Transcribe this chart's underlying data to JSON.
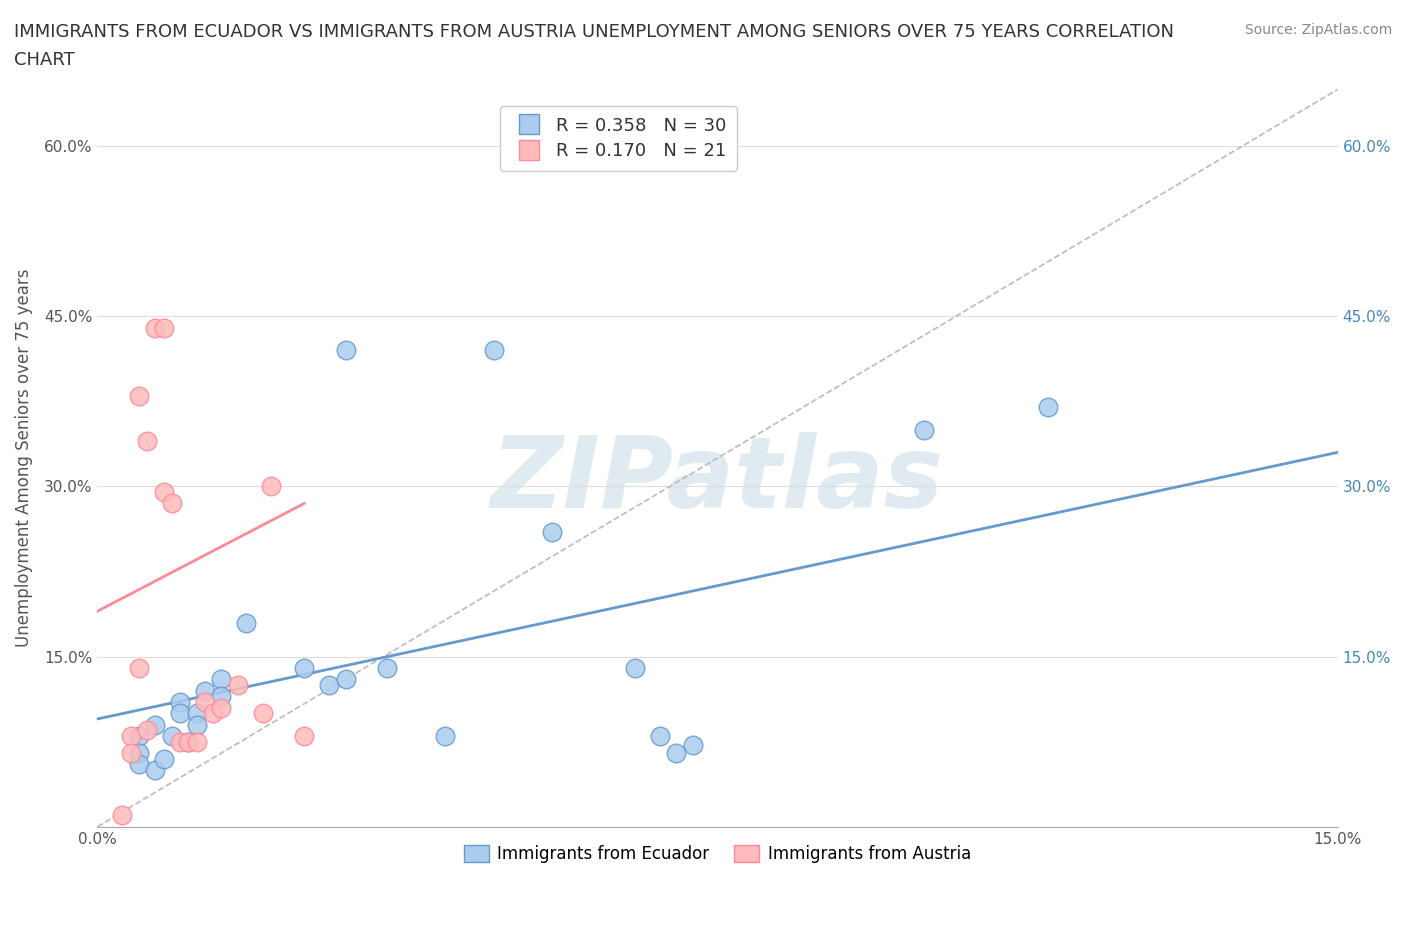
{
  "title_line1": "IMMIGRANTS FROM ECUADOR VS IMMIGRANTS FROM AUSTRIA UNEMPLOYMENT AMONG SENIORS OVER 75 YEARS CORRELATION",
  "title_line2": "CHART",
  "source": "Source: ZipAtlas.com",
  "xlabel": "",
  "ylabel": "Unemployment Among Seniors over 75 years",
  "xlim": [
    0.0,
    0.15
  ],
  "ylim": [
    0.0,
    0.65
  ],
  "xticks": [
    0.0,
    0.025,
    0.05,
    0.075,
    0.1,
    0.125,
    0.15
  ],
  "ytick_positions": [
    0.0,
    0.15,
    0.3,
    0.45,
    0.6
  ],
  "ytick_labels": [
    "",
    "15.0%",
    "30.0%",
    "45.0%",
    "60.0%"
  ],
  "right_ytick_positions": [
    0.15,
    0.3,
    0.45,
    0.6
  ],
  "right_ytick_labels": [
    "15.0%",
    "30.0%",
    "45.0%",
    "60.0%"
  ],
  "ecuador_color": "#AACCEE",
  "austria_color": "#FFBBBB",
  "ecuador_edge": "#6699CC",
  "austria_edge": "#FF8899",
  "ecuador_R": 0.358,
  "ecuador_N": 30,
  "austria_R": 0.17,
  "austria_N": 21,
  "ecuador_points": [
    [
      0.005,
      0.08
    ],
    [
      0.005,
      0.065
    ],
    [
      0.005,
      0.055
    ],
    [
      0.007,
      0.05
    ],
    [
      0.007,
      0.09
    ],
    [
      0.008,
      0.06
    ],
    [
      0.009,
      0.08
    ],
    [
      0.01,
      0.11
    ],
    [
      0.01,
      0.1
    ],
    [
      0.011,
      0.075
    ],
    [
      0.012,
      0.1
    ],
    [
      0.012,
      0.09
    ],
    [
      0.013,
      0.12
    ],
    [
      0.015,
      0.13
    ],
    [
      0.015,
      0.115
    ],
    [
      0.018,
      0.18
    ],
    [
      0.025,
      0.14
    ],
    [
      0.028,
      0.125
    ],
    [
      0.03,
      0.13
    ],
    [
      0.03,
      0.42
    ],
    [
      0.035,
      0.14
    ],
    [
      0.042,
      0.08
    ],
    [
      0.048,
      0.42
    ],
    [
      0.055,
      0.26
    ],
    [
      0.065,
      0.14
    ],
    [
      0.068,
      0.08
    ],
    [
      0.07,
      0.065
    ],
    [
      0.072,
      0.072
    ],
    [
      0.1,
      0.35
    ],
    [
      0.115,
      0.37
    ]
  ],
  "austria_points": [
    [
      0.003,
      0.01
    ],
    [
      0.004,
      0.08
    ],
    [
      0.004,
      0.065
    ],
    [
      0.005,
      0.14
    ],
    [
      0.005,
      0.38
    ],
    [
      0.006,
      0.085
    ],
    [
      0.006,
      0.34
    ],
    [
      0.007,
      0.44
    ],
    [
      0.008,
      0.44
    ],
    [
      0.008,
      0.295
    ],
    [
      0.009,
      0.285
    ],
    [
      0.01,
      0.075
    ],
    [
      0.011,
      0.075
    ],
    [
      0.012,
      0.075
    ],
    [
      0.013,
      0.11
    ],
    [
      0.014,
      0.1
    ],
    [
      0.015,
      0.105
    ],
    [
      0.017,
      0.125
    ],
    [
      0.02,
      0.1
    ],
    [
      0.021,
      0.3
    ],
    [
      0.025,
      0.08
    ]
  ],
  "ecuador_line": [
    [
      0.0,
      0.095
    ],
    [
      0.15,
      0.33
    ]
  ],
  "austria_line": [
    [
      0.0,
      0.19
    ],
    [
      0.025,
      0.285
    ]
  ],
  "diag_line": [
    [
      0.0,
      0.0
    ],
    [
      0.15,
      0.65
    ]
  ],
  "background_color": "#FFFFFF",
  "grid_color": "#DDDDDD",
  "watermark": "ZIPatlas",
  "watermark_color": "#CCDDE8"
}
